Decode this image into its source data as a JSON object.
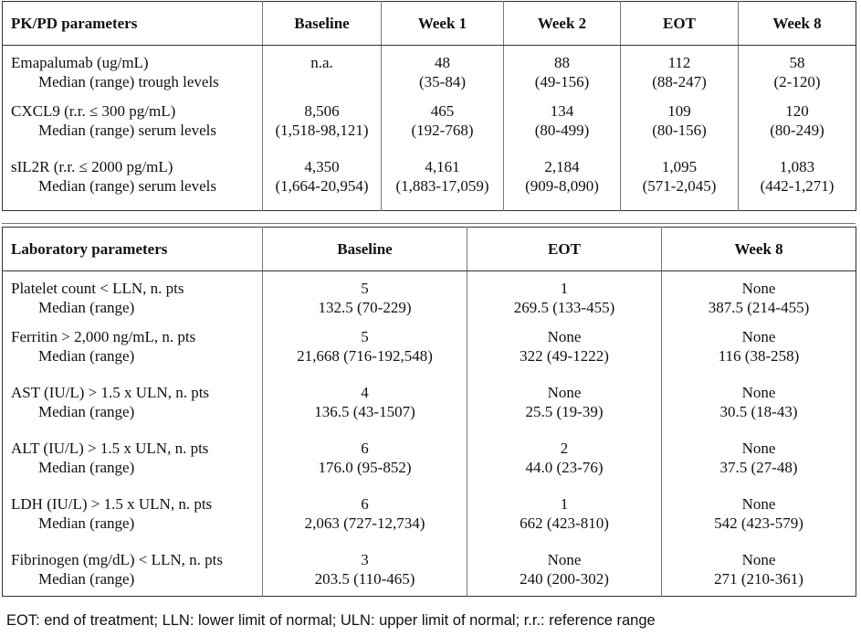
{
  "pk_table": {
    "headers": [
      "PK/PD parameters",
      "Baseline",
      "Week 1",
      "Week 2",
      "EOT",
      "Week 8"
    ],
    "rows": [
      {
        "label": "Emapalumab (ug/mL)",
        "sublabel": "Median (range) trough levels",
        "values": [
          [
            "n.a.",
            ""
          ],
          [
            "48",
            "(35-84)"
          ],
          [
            "88",
            "(49-156)"
          ],
          [
            "112",
            "(88-247)"
          ],
          [
            "58",
            "(2-120)"
          ]
        ]
      },
      {
        "label": "CXCL9 (r.r. ≤ 300 pg/mL)",
        "sublabel": "Median (range) serum levels",
        "values": [
          [
            "8,506",
            "(1,518-98,121)"
          ],
          [
            "465",
            "(192-768)"
          ],
          [
            "134",
            "(80-499)"
          ],
          [
            "109",
            "(80-156)"
          ],
          [
            "120",
            "(80-249)"
          ]
        ]
      },
      {
        "label": "sIL2R (r.r. ≤ 2000 pg/mL)",
        "sublabel": "Median (range) serum levels",
        "values": [
          [
            "4,350",
            "(1,664-20,954)"
          ],
          [
            "4,161",
            "(1,883-17,059)"
          ],
          [
            "2,184",
            "(909-8,090)"
          ],
          [
            "1,095",
            "(571-2,045)"
          ],
          [
            "1,083",
            "(442-1,271)"
          ]
        ]
      }
    ]
  },
  "lab_table": {
    "headers": [
      "Laboratory parameters",
      "Baseline",
      "EOT",
      "Week 8"
    ],
    "rows": [
      {
        "label": "Platelet count < LLN, n. pts",
        "sublabel": "Median (range)",
        "values": [
          [
            "5",
            "132.5 (70-229)"
          ],
          [
            "1",
            "269.5 (133-455)"
          ],
          [
            "None",
            "387.5 (214-455)"
          ]
        ]
      },
      {
        "label": "Ferritin > 2,000 ng/mL, n. pts",
        "sublabel": "Median (range)",
        "values": [
          [
            "5",
            "21,668 (716-192,548)"
          ],
          [
            "None",
            "322 (49-1222)"
          ],
          [
            "None",
            "116 (38-258)"
          ]
        ]
      },
      {
        "label": "AST (IU/L) > 1.5 x ULN, n. pts",
        "sublabel": "Median (range)",
        "values": [
          [
            "4",
            "136.5 (43-1507)"
          ],
          [
            "None",
            "25.5 (19-39)"
          ],
          [
            "None",
            "30.5 (18-43)"
          ]
        ]
      },
      {
        "label": "ALT (IU/L) > 1.5 x ULN, n. pts",
        "sublabel": "Median (range)",
        "values": [
          [
            "6",
            "176.0 (95-852)"
          ],
          [
            "2",
            "44.0 (23-76)"
          ],
          [
            "None",
            "37.5 (27-48)"
          ]
        ]
      },
      {
        "label": "LDH (IU/L) > 1.5 x ULN, n. pts",
        "sublabel": "Median (range)",
        "values": [
          [
            "6",
            "2,063 (727-12,734)"
          ],
          [
            "1",
            "662 (423-810)"
          ],
          [
            "None",
            "542 (423-579)"
          ]
        ]
      },
      {
        "label": "Fibrinogen (mg/dL) < LLN, n. pts",
        "sublabel": "Median (range)",
        "values": [
          [
            "3",
            "203.5 (110-465)"
          ],
          [
            "None",
            "240 (200-302)"
          ],
          [
            "None",
            "271 (210-361)"
          ]
        ]
      }
    ]
  },
  "footnote": "EOT: end of treatment; LLN: lower limit of normal; ULN: upper limit of normal; r.r.: reference range"
}
